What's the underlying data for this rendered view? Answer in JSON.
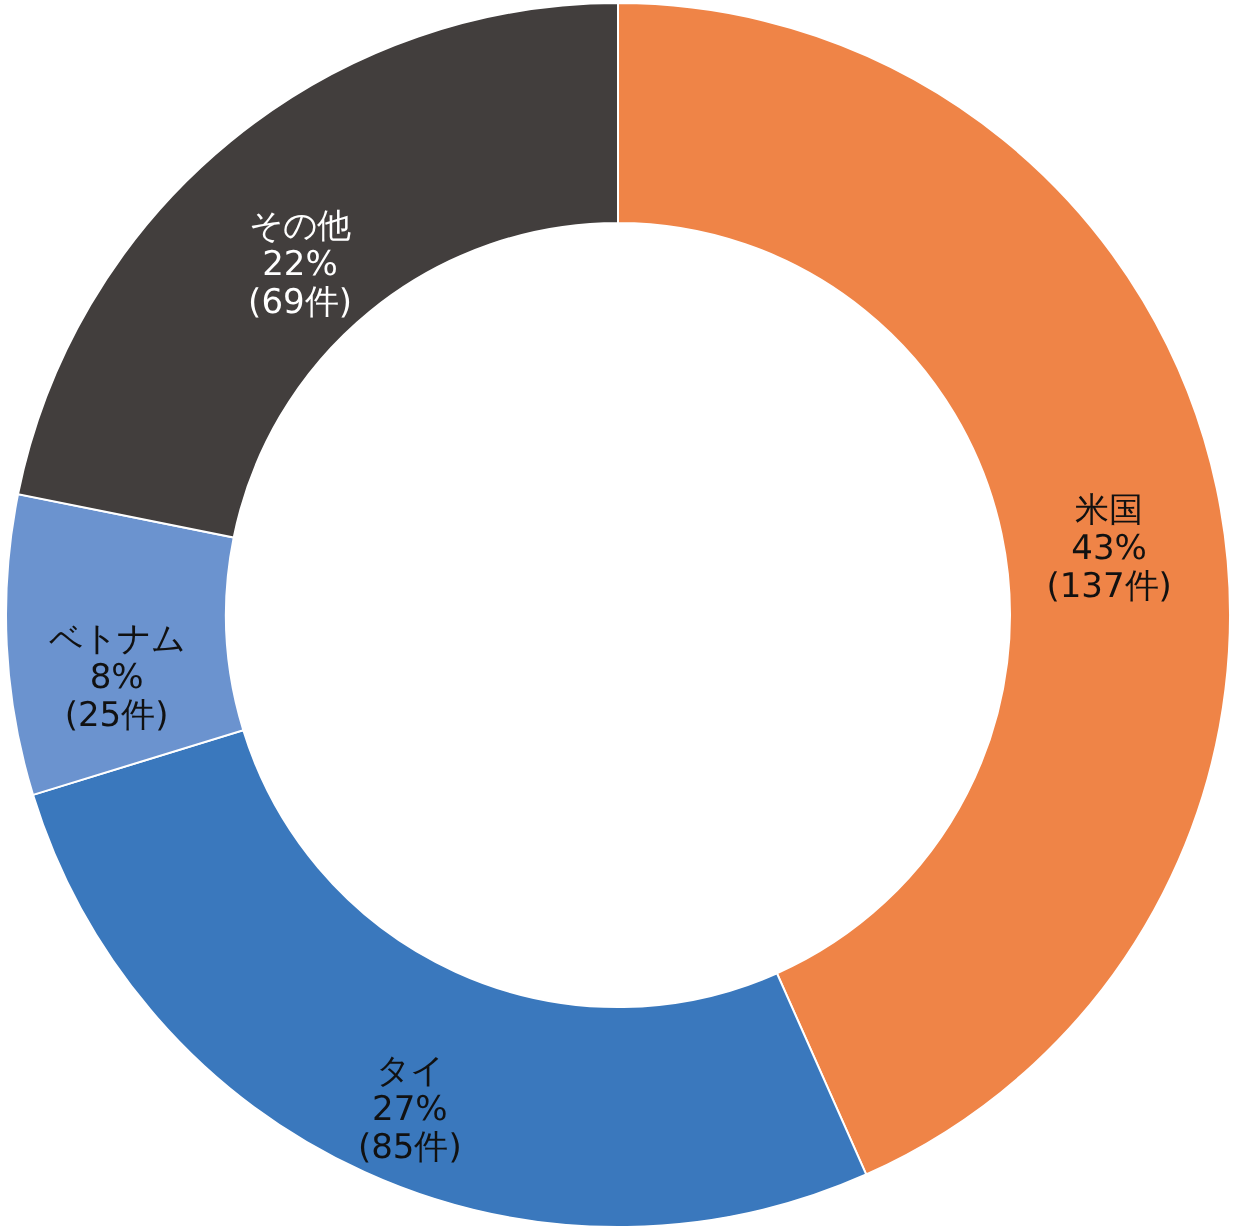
{
  "chart_data": {
    "type": "donut",
    "categories": [
      "米国",
      "タイ",
      "ベトナム",
      "その他"
    ],
    "values": [
      137,
      85,
      25,
      69
    ],
    "colors": [
      "#ef8447",
      "#3a78bd",
      "#6b93cf",
      "#423e3d"
    ],
    "value_labels": [
      "43%\n(137件)",
      "27%\n(85件)",
      "8%\n(25件)",
      "22%\n(69件)"
    ]
  }
}
